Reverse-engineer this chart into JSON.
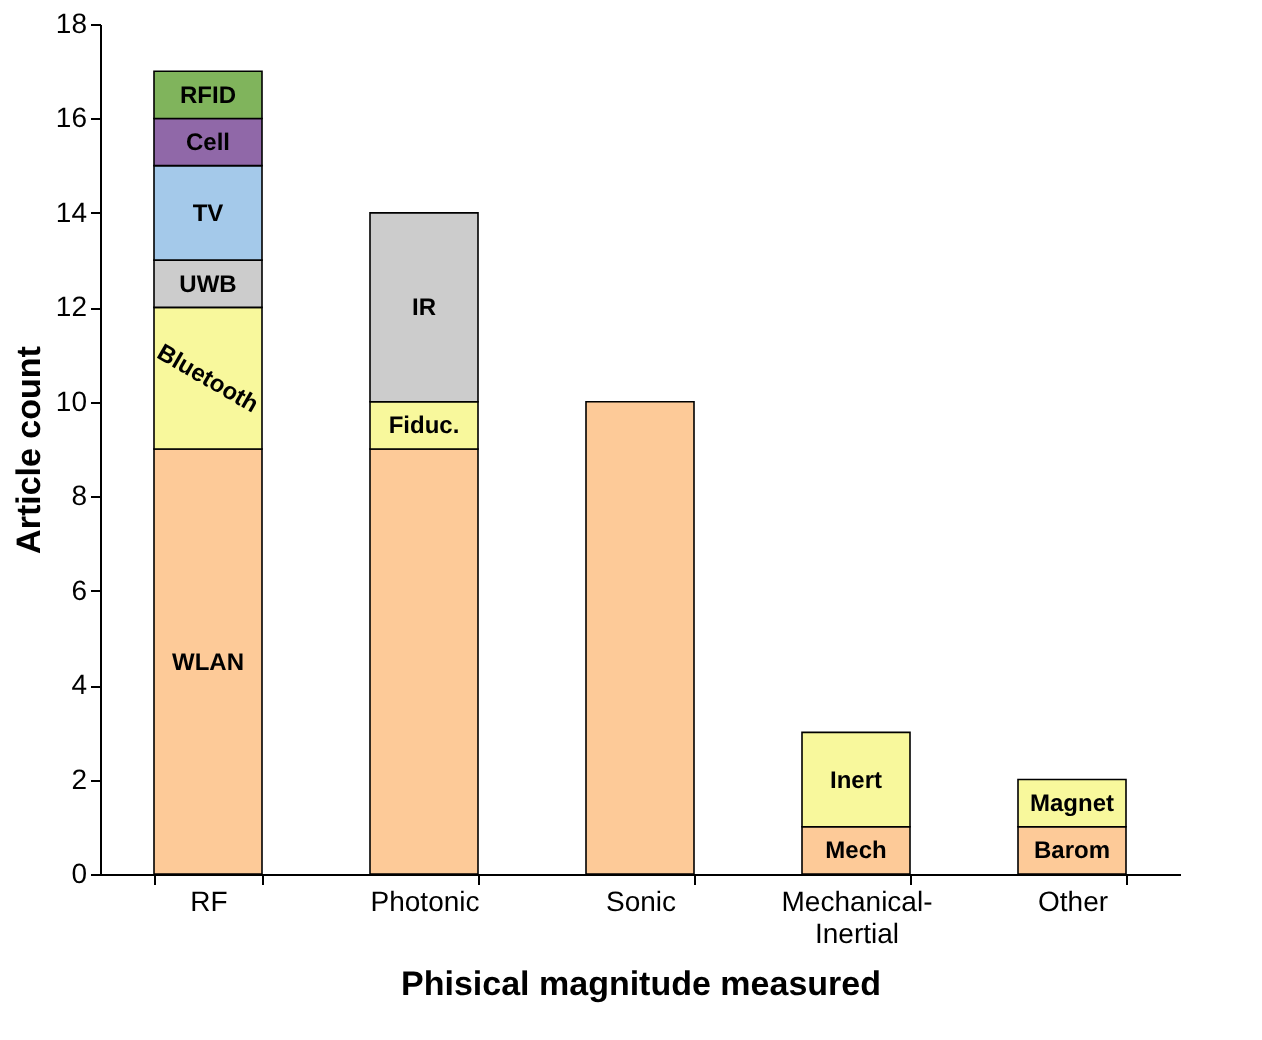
{
  "chart_data": {
    "type": "bar",
    "stacked": true,
    "xlabel": "Phisical magnitude measured",
    "ylabel": "Article count",
    "categories": [
      "RF",
      "Photonic",
      "Sonic",
      "Mechanical-Inertial",
      "Other"
    ],
    "ylim": [
      0,
      18
    ],
    "yticks": [
      0,
      2,
      4,
      6,
      8,
      10,
      12,
      14,
      16,
      18
    ],
    "grid": false,
    "series": [
      {
        "name": "WLAN",
        "color": "#fdca98",
        "values": [
          9,
          null,
          null,
          null,
          null
        ]
      },
      {
        "color": "#fdca98",
        "values": [
          null,
          9,
          10,
          null,
          null
        ]
      },
      {
        "name": "Mech",
        "color": "#fdca98",
        "values": [
          null,
          null,
          null,
          1,
          null
        ]
      },
      {
        "name": "Barom",
        "color": "#fdca98",
        "values": [
          null,
          null,
          null,
          null,
          1
        ]
      },
      {
        "name": "Bluetooth",
        "color": "#f8f89c",
        "values": [
          3,
          null,
          null,
          null,
          null
        ]
      },
      {
        "name": "Fiduc.",
        "color": "#f8f89c",
        "values": [
          null,
          1,
          null,
          null,
          null
        ]
      },
      {
        "name": "Inert",
        "color": "#f8f89c",
        "values": [
          null,
          null,
          null,
          2,
          null
        ]
      },
      {
        "name": "Magnet",
        "color": "#f8f89c",
        "values": [
          null,
          null,
          null,
          null,
          1
        ]
      },
      {
        "name": "UWB",
        "color": "#cccccc",
        "values": [
          1,
          null,
          null,
          null,
          null
        ]
      },
      {
        "name": "IR",
        "color": "#cccccc",
        "values": [
          null,
          4,
          null,
          null,
          null
        ]
      },
      {
        "name": "TV",
        "color": "#a4c9ea",
        "values": [
          2,
          null,
          null,
          null,
          null
        ]
      },
      {
        "name": "Cell",
        "color": "#9068a8",
        "values": [
          1,
          null,
          null,
          null,
          null
        ]
      },
      {
        "name": "RFID",
        "color": "#80b45c",
        "values": [
          1,
          null,
          null,
          null,
          null
        ]
      }
    ]
  }
}
